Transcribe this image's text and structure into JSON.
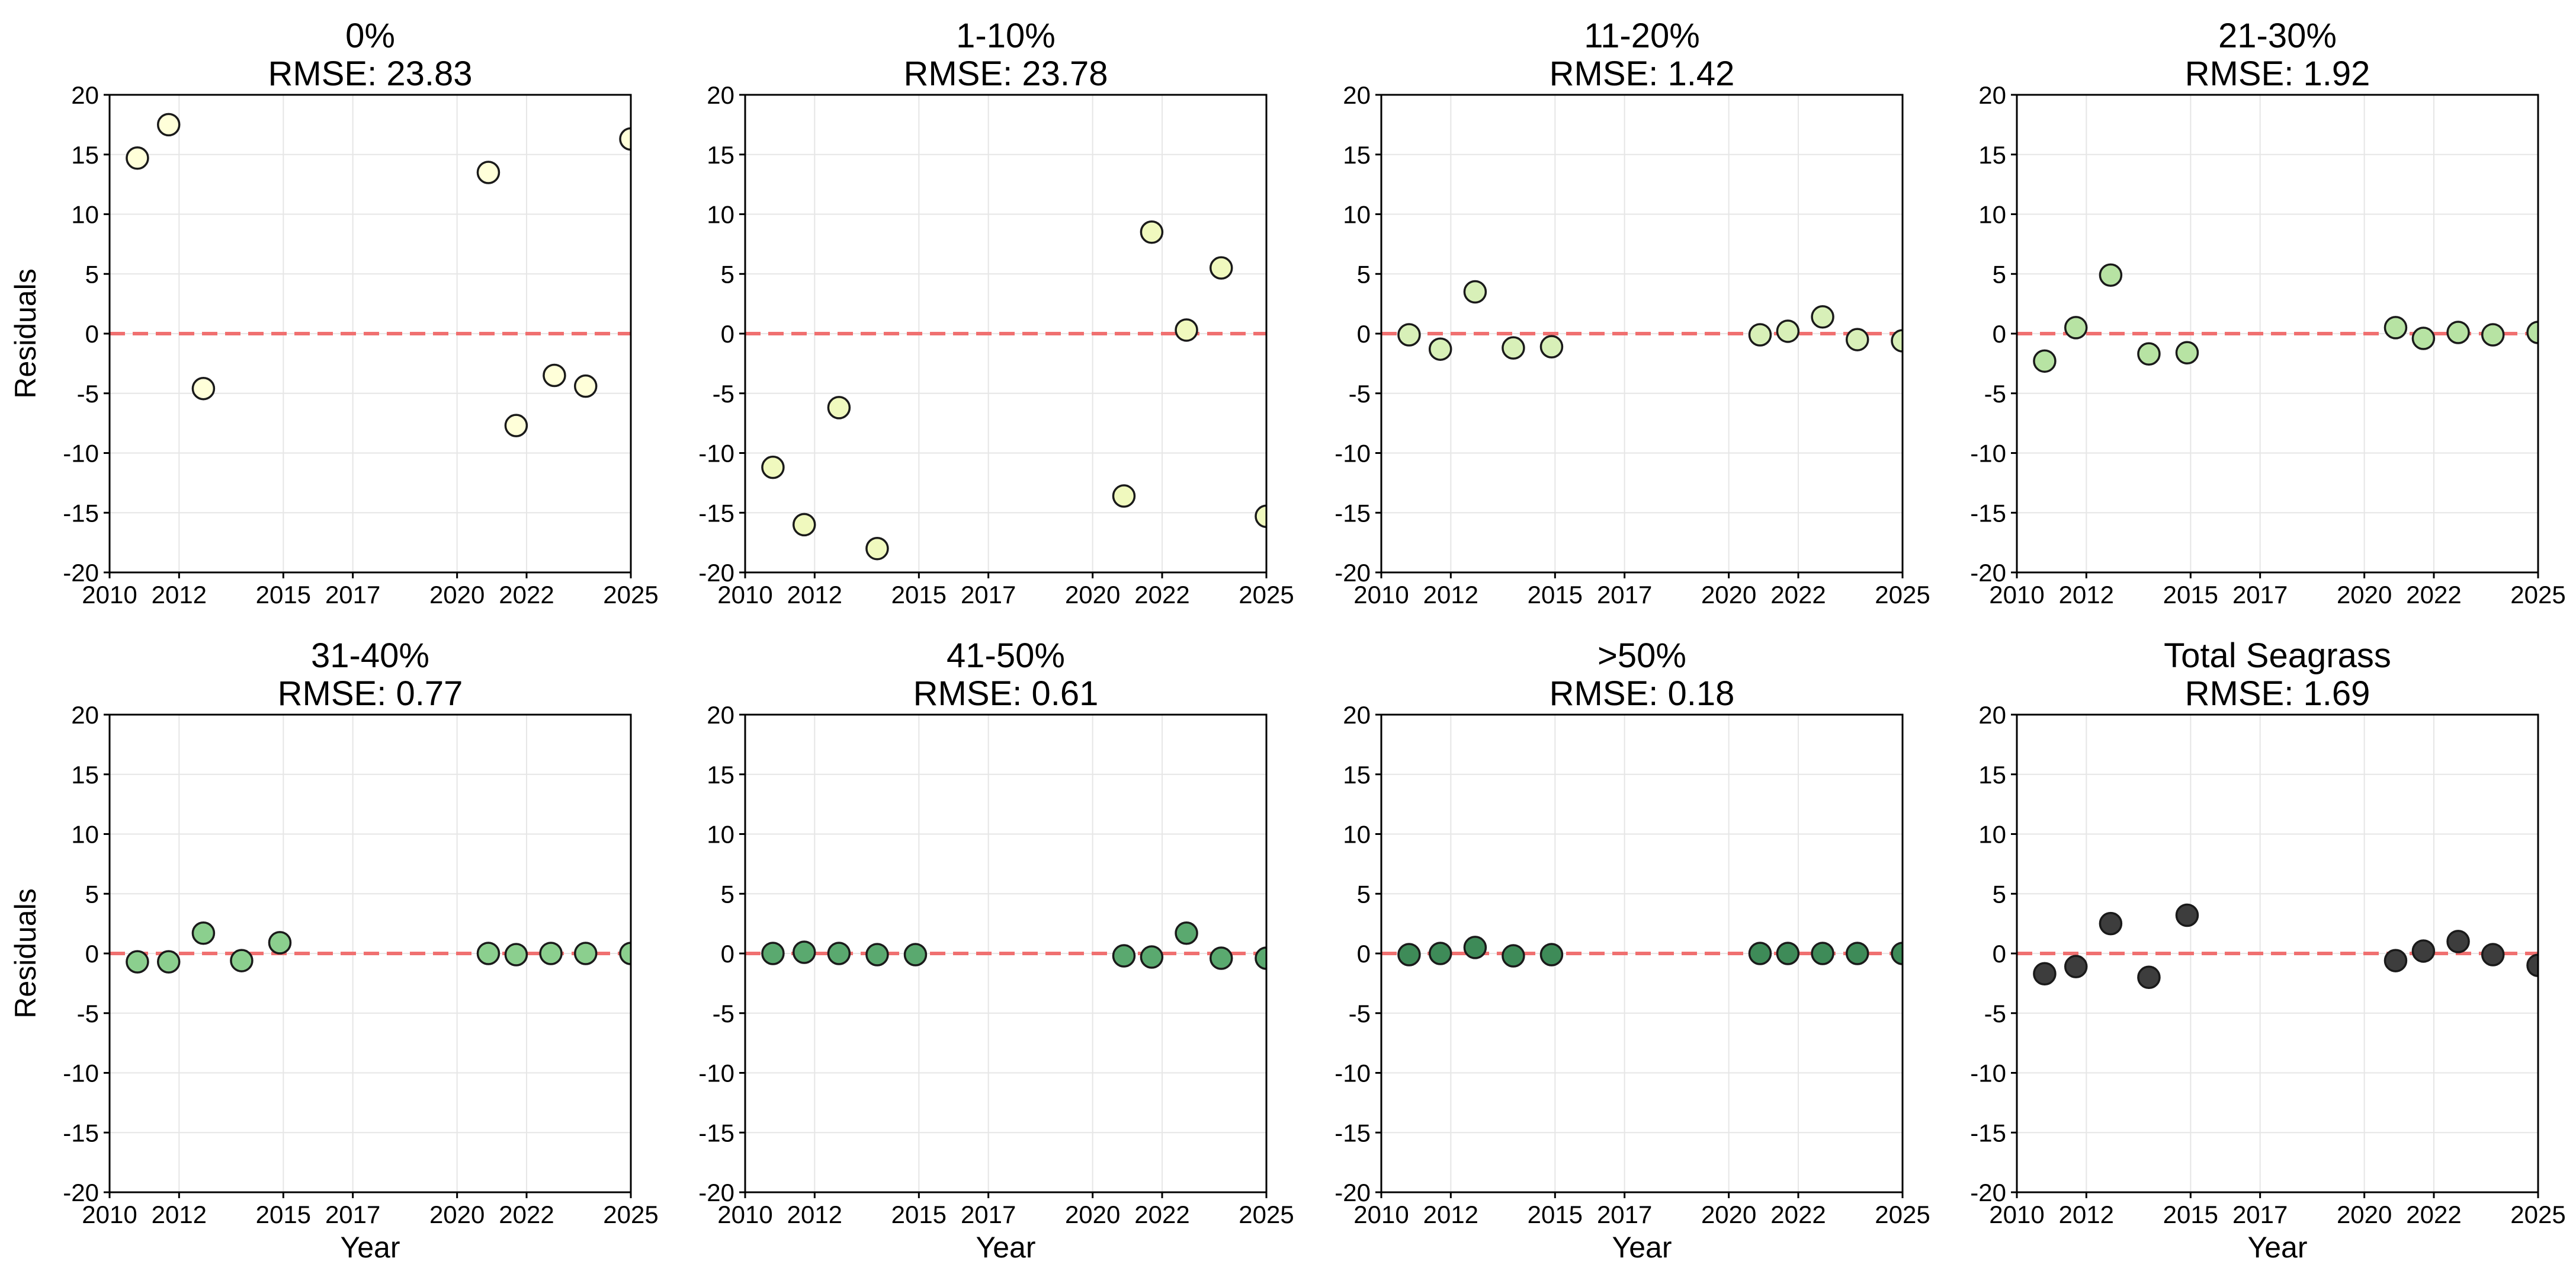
{
  "colors": {
    "zero_line": "#f07070",
    "grid": "#e6e6e6",
    "marker_edge": "#1a1a1a"
  },
  "chart_data": [
    {
      "type": "scatter",
      "title": "0%",
      "subtitle": "RMSE: 23.83",
      "marker_color": "#ffffd9",
      "xlabel": "",
      "ylabel": "Residuals",
      "xlim": [
        2010,
        2025
      ],
      "ylim": [
        -20,
        20
      ],
      "x": [
        2010.8,
        2011.7,
        2012.7,
        2020.9,
        2021.7,
        2022.8,
        2023.7,
        2025.0
      ],
      "y": [
        14.7,
        17.5,
        -4.6,
        13.5,
        -7.7,
        -3.5,
        -4.4,
        16.3
      ]
    },
    {
      "type": "scatter",
      "title": "1-10%",
      "subtitle": "RMSE: 23.78",
      "marker_color": "#f0f9be",
      "xlabel": "",
      "ylabel": "",
      "xlim": [
        2010,
        2025
      ],
      "ylim": [
        -20,
        20
      ],
      "x": [
        2010.8,
        2011.7,
        2012.7,
        2013.8,
        2020.9,
        2021.7,
        2022.7,
        2023.7,
        2025.0
      ],
      "y": [
        -11.2,
        -16.0,
        -6.2,
        -18.0,
        -13.6,
        8.5,
        0.3,
        5.5,
        -15.3
      ]
    },
    {
      "type": "scatter",
      "title": "11-20%",
      "subtitle": "RMSE: 1.42",
      "marker_color": "#d8f0b8",
      "xlabel": "",
      "ylabel": "",
      "xlim": [
        2010,
        2025
      ],
      "ylim": [
        -20,
        20
      ],
      "x": [
        2010.8,
        2011.7,
        2012.7,
        2013.8,
        2014.9,
        2020.9,
        2021.7,
        2022.7,
        2023.7,
        2025.0
      ],
      "y": [
        -0.1,
        -1.3,
        3.5,
        -1.2,
        -1.1,
        -0.1,
        0.2,
        1.4,
        -0.5,
        -0.6
      ]
    },
    {
      "type": "scatter",
      "title": "21-30%",
      "subtitle": "RMSE: 1.92",
      "marker_color": "#b7e3a3",
      "xlabel": "",
      "ylabel": "",
      "xlim": [
        2010,
        2025
      ],
      "ylim": [
        -20,
        20
      ],
      "x": [
        2010.8,
        2011.7,
        2012.7,
        2013.8,
        2014.9,
        2020.9,
        2021.7,
        2022.7,
        2023.7,
        2025.0
      ],
      "y": [
        -2.3,
        0.5,
        4.9,
        -1.7,
        -1.6,
        0.5,
        -0.4,
        0.1,
        -0.1,
        0.1
      ]
    },
    {
      "type": "scatter",
      "title": "31-40%",
      "subtitle": "RMSE: 0.77",
      "marker_color": "#8bcf8e",
      "xlabel": "Year",
      "ylabel": "Residuals",
      "xlim": [
        2010,
        2025
      ],
      "ylim": [
        -20,
        20
      ],
      "x": [
        2010.8,
        2011.7,
        2012.7,
        2013.8,
        2014.9,
        2020.9,
        2021.7,
        2022.7,
        2023.7,
        2025.0
      ],
      "y": [
        -0.7,
        -0.7,
        1.7,
        -0.6,
        0.9,
        0.0,
        -0.1,
        0.0,
        0.0,
        0.0
      ]
    },
    {
      "type": "scatter",
      "title": "41-50%",
      "subtitle": "RMSE: 0.61",
      "marker_color": "#5aa96f",
      "xlabel": "Year",
      "ylabel": "",
      "xlim": [
        2010,
        2025
      ],
      "ylim": [
        -20,
        20
      ],
      "x": [
        2010.8,
        2011.7,
        2012.7,
        2013.8,
        2014.9,
        2020.9,
        2021.7,
        2022.7,
        2023.7,
        2025.0
      ],
      "y": [
        0.0,
        0.1,
        0.0,
        -0.1,
        -0.1,
        -0.2,
        -0.3,
        1.7,
        -0.4,
        -0.4
      ]
    },
    {
      "type": "scatter",
      "title": ">50%",
      "subtitle": "RMSE: 0.18",
      "marker_color": "#3e8b58",
      "xlabel": "Year",
      "ylabel": "",
      "xlim": [
        2010,
        2025
      ],
      "ylim": [
        -20,
        20
      ],
      "x": [
        2010.8,
        2011.7,
        2012.7,
        2013.8,
        2014.9,
        2020.9,
        2021.7,
        2022.7,
        2023.7,
        2025.0
      ],
      "y": [
        -0.1,
        0.0,
        0.5,
        -0.2,
        -0.1,
        0.0,
        0.0,
        0.0,
        0.0,
        0.0
      ]
    },
    {
      "type": "scatter",
      "title": "Total Seagrass",
      "subtitle": "RMSE: 1.69",
      "marker_color": "#3d3d3d",
      "xlabel": "Year",
      "ylabel": "",
      "xlim": [
        2010,
        2025
      ],
      "ylim": [
        -20,
        20
      ],
      "x": [
        2010.8,
        2011.7,
        2012.7,
        2013.8,
        2014.9,
        2020.9,
        2021.7,
        2022.7,
        2023.7,
        2025.0
      ],
      "y": [
        -1.7,
        -1.1,
        2.5,
        -2.0,
        3.2,
        -0.6,
        0.2,
        1.0,
        -0.1,
        -1.0
      ]
    }
  ],
  "axis": {
    "yticks": [
      "20",
      "15",
      "10",
      "5",
      "0",
      "-5",
      "-10",
      "-15",
      "-20"
    ],
    "xticks": [
      "2010",
      "2012",
      "2015",
      "2017",
      "2020",
      "2022",
      "2025"
    ]
  }
}
